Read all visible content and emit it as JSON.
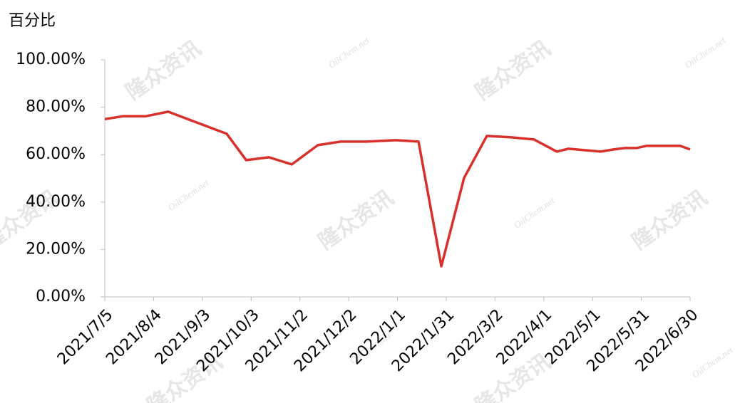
{
  "chart_data": {
    "type": "line",
    "y_label": "百分比",
    "watermark": [
      "隆众资讯",
      "OilChem.net"
    ],
    "x": [
      "2021/7/5",
      "2021/7/16",
      "2021/7/30",
      "2021/8/13",
      "2021/9/18",
      "2021/9/30",
      "2021/10/14",
      "2021/10/28",
      "2021/11/13",
      "2021/11/27",
      "2021/12/13",
      "2021/12/31",
      "2022/1/14",
      "2022/1/28",
      "2022/2/11",
      "2022/2/25",
      "2022/3/12",
      "2022/3/26",
      "2022/4/9",
      "2022/4/16",
      "2022/5/6",
      "2022/5/14",
      "2022/5/21",
      "2022/5/28",
      "2022/6/3",
      "2022/6/24",
      "2022/6/30"
    ],
    "values": [
      75.0,
      76.2,
      76.2,
      78.1,
      68.8,
      57.7,
      58.9,
      55.9,
      64.0,
      65.5,
      65.5,
      66.1,
      65.5,
      12.9,
      50.2,
      67.9,
      67.3,
      66.4,
      61.3,
      62.5,
      61.3,
      62.2,
      62.8,
      62.8,
      63.7,
      63.7,
      62.2
    ],
    "color": "#d9302b",
    "xlim": [
      "2021/7/5",
      "2022/6/30"
    ],
    "xticks": [
      "2021/7/5",
      "2021/8/4",
      "2021/9/3",
      "2021/10/3",
      "2021/11/2",
      "2021/12/2",
      "2022/1/1",
      "2022/1/31",
      "2022/3/2",
      "2022/4/1",
      "2022/5/1",
      "2022/5/31",
      "2022/6/30"
    ],
    "ylim": [
      0,
      100
    ],
    "yticks": [
      {
        "value": 0,
        "label": "0.00%"
      },
      {
        "value": 20,
        "label": "20.00%"
      },
      {
        "value": 40,
        "label": "40.00%"
      },
      {
        "value": 60,
        "label": "60.00%"
      },
      {
        "value": 80,
        "label": "80.00%"
      },
      {
        "value": 100,
        "label": "100.00%"
      }
    ],
    "grid": false
  }
}
